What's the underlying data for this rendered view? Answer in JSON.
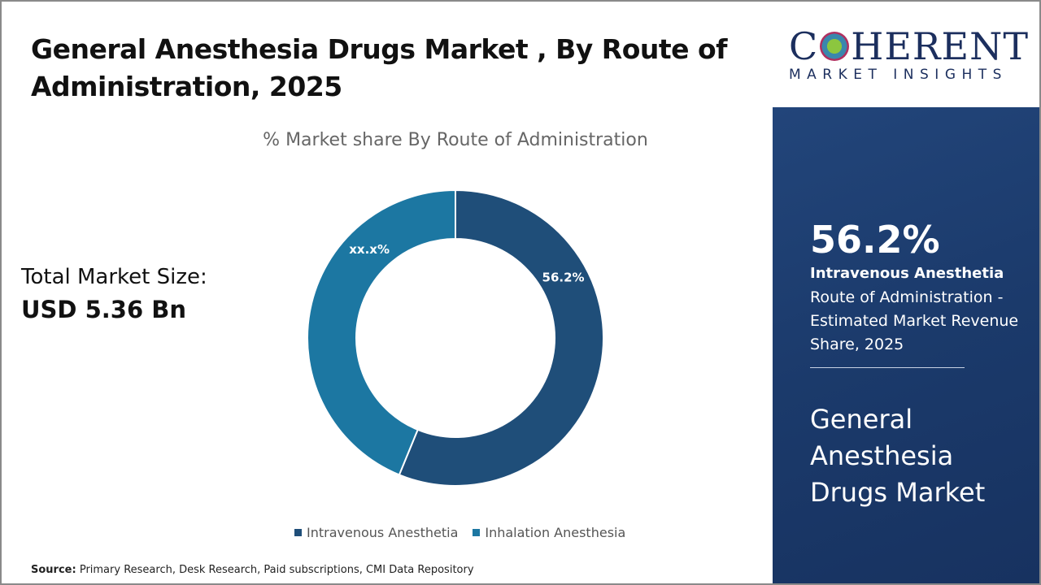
{
  "header": {
    "title": "General Anesthesia Drugs Market , By Route of Administration, 2025"
  },
  "logo": {
    "top": "COHERENT",
    "bottom": "MARKET INSIGHTS"
  },
  "market_size": {
    "label": "Total Market Size:",
    "value": "USD 5.36 Bn"
  },
  "chart_data": {
    "type": "pie",
    "donut": true,
    "title": "% Market share By Route of Administration",
    "categories": [
      "Intravenous Anesthetia",
      "Inhalation Anesthesia"
    ],
    "values": [
      56.2,
      43.8
    ],
    "data_labels": [
      "56.2%",
      "xx.x%"
    ],
    "colors": [
      "#1f4e79",
      "#1c77a2"
    ],
    "legend_position": "bottom"
  },
  "source": {
    "label": "Source:",
    "text": "Primary Research, Desk Research, Paid subscriptions, CMI Data Repository"
  },
  "panel": {
    "value": "56.2%",
    "segment": "Intravenous Anesthetia",
    "description": "Route of Administration - Estimated Market Revenue Share, 2025",
    "market": "General Anesthesia Drugs Market"
  }
}
